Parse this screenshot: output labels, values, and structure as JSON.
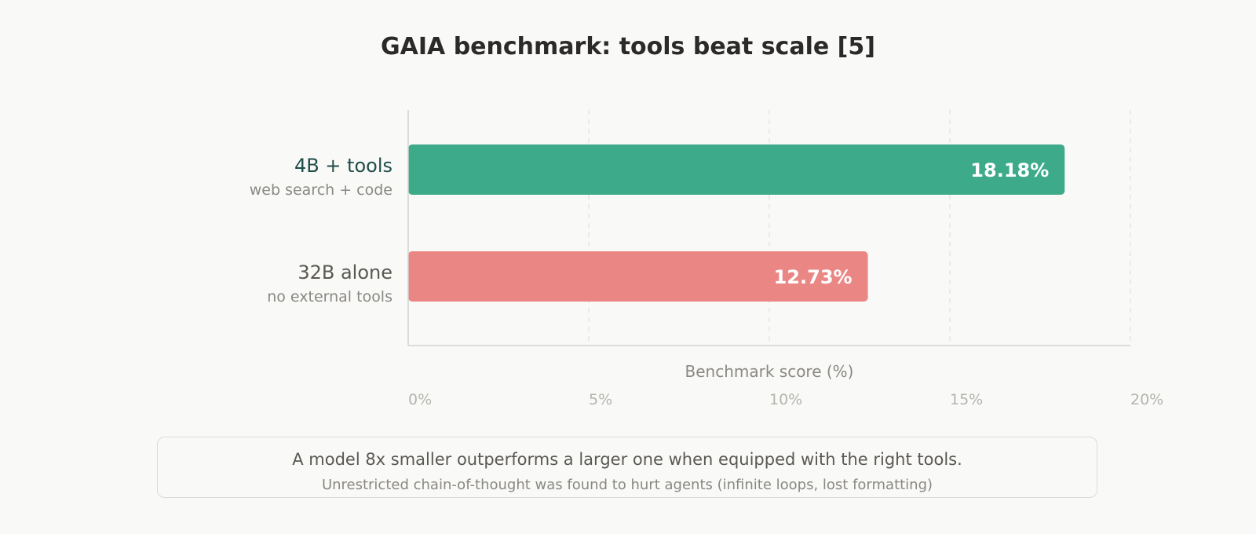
{
  "chart_data": {
    "type": "bar",
    "orientation": "horizontal",
    "title": "GAIA benchmark: tools beat scale [5]",
    "xlabel": "Benchmark score (%)",
    "xlim": [
      0,
      20
    ],
    "x_ticks": [
      "0%",
      "5%",
      "10%",
      "15%",
      "20%"
    ],
    "x_tick_values": [
      0,
      5,
      10,
      15,
      20
    ],
    "grid": "vertical dashed",
    "categories": [
      {
        "label": "4B + tools",
        "sublabel": "web search + code",
        "value": 18.18,
        "value_label": "18.18%",
        "color": "#3dab89",
        "label_color": "#1f4d4a"
      },
      {
        "label": "32B alone",
        "sublabel": "no external tools",
        "value": 12.73,
        "value_label": "12.73%",
        "color": "#ea8785",
        "label_color": "#5a5853"
      }
    ]
  },
  "takeaway": {
    "main": "A model 8x smaller outperforms a larger one when equipped with the right tools.",
    "sub": "Unrestricted chain-of-thought was found to hurt agents (infinite loops, lost formatting)"
  }
}
